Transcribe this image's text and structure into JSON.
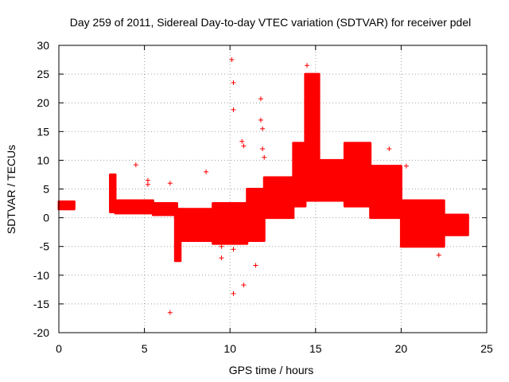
{
  "chart_data": {
    "type": "scatter",
    "title": "Day 259 of 2011, Sidereal Day-to-day VTEC variation (SDTVAR) for receiver pdel",
    "xlabel": "GPS time / hours",
    "ylabel": "SDTVAR / TECUs",
    "xlim": [
      0,
      25
    ],
    "ylim": [
      -20,
      30
    ],
    "xticks": [
      0,
      5,
      10,
      15,
      20,
      25
    ],
    "yticks": [
      -20,
      -15,
      -10,
      -5,
      0,
      5,
      10,
      15,
      20,
      25,
      30
    ],
    "xtick_labels": [
      "0",
      "5",
      "10",
      "15",
      "20",
      "25"
    ],
    "ytick_labels": [
      "-20",
      "-15",
      "-10",
      "-5",
      "0",
      "5",
      "10",
      "15",
      "20",
      "25",
      "30"
    ],
    "grid": true,
    "marker": "+",
    "color": "#ff0000",
    "series": [
      {
        "name": "SDTVAR",
        "bands": [
          {
            "x0": 0.0,
            "x1": 0.9,
            "lo": 1.5,
            "hi": 2.8
          },
          {
            "x0": 3.0,
            "x1": 3.3,
            "lo": 1.0,
            "hi": 7.5
          },
          {
            "x0": 3.3,
            "x1": 5.5,
            "lo": 0.8,
            "hi": 3.0
          },
          {
            "x0": 5.5,
            "x1": 6.9,
            "lo": 0.5,
            "hi": 2.5
          },
          {
            "x0": 6.8,
            "x1": 7.1,
            "lo": -7.5,
            "hi": 1.5
          },
          {
            "x0": 7.1,
            "x1": 9.0,
            "lo": -4.0,
            "hi": 1.5
          },
          {
            "x0": 9.0,
            "x1": 11.0,
            "lo": -4.5,
            "hi": 2.5
          },
          {
            "x0": 11.0,
            "x1": 12.0,
            "lo": -4.0,
            "hi": 5.0
          },
          {
            "x0": 12.0,
            "x1": 13.7,
            "lo": 0.0,
            "hi": 7.0
          },
          {
            "x0": 13.7,
            "x1": 14.4,
            "lo": 2.0,
            "hi": 13.0
          },
          {
            "x0": 14.4,
            "x1": 15.2,
            "lo": 3.0,
            "hi": 25.0
          },
          {
            "x0": 15.2,
            "x1": 16.7,
            "lo": 3.0,
            "hi": 10.0
          },
          {
            "x0": 16.7,
            "x1": 18.2,
            "lo": 2.0,
            "hi": 13.0
          },
          {
            "x0": 18.2,
            "x1": 20.0,
            "lo": 0.0,
            "hi": 9.0
          },
          {
            "x0": 20.0,
            "x1": 22.5,
            "lo": -5.0,
            "hi": 3.0
          },
          {
            "x0": 22.5,
            "x1": 23.9,
            "lo": -3.0,
            "hi": 0.5
          }
        ],
        "outliers": [
          {
            "x": 4.5,
            "y": 9.2
          },
          {
            "x": 5.2,
            "y": 6.5
          },
          {
            "x": 5.2,
            "y": 5.8
          },
          {
            "x": 6.5,
            "y": 6.0
          },
          {
            "x": 6.5,
            "y": -16.5
          },
          {
            "x": 8.6,
            "y": 8.0
          },
          {
            "x": 9.5,
            "y": -5.0
          },
          {
            "x": 9.5,
            "y": -7.0
          },
          {
            "x": 10.1,
            "y": 27.5
          },
          {
            "x": 10.2,
            "y": 23.5
          },
          {
            "x": 10.2,
            "y": 18.8
          },
          {
            "x": 10.2,
            "y": -5.5
          },
          {
            "x": 10.2,
            "y": -13.2
          },
          {
            "x": 10.7,
            "y": 13.3
          },
          {
            "x": 10.8,
            "y": 12.5
          },
          {
            "x": 10.8,
            "y": -11.7
          },
          {
            "x": 11.5,
            "y": -8.3
          },
          {
            "x": 11.8,
            "y": 20.7
          },
          {
            "x": 11.8,
            "y": 17.0
          },
          {
            "x": 11.9,
            "y": 15.5
          },
          {
            "x": 11.9,
            "y": 12.0
          },
          {
            "x": 12.0,
            "y": 10.5
          },
          {
            "x": 14.5,
            "y": 26.5
          },
          {
            "x": 19.3,
            "y": 12.0
          },
          {
            "x": 20.3,
            "y": 9.0
          },
          {
            "x": 22.0,
            "y": 1.0
          },
          {
            "x": 22.2,
            "y": -6.5
          }
        ]
      }
    ]
  }
}
